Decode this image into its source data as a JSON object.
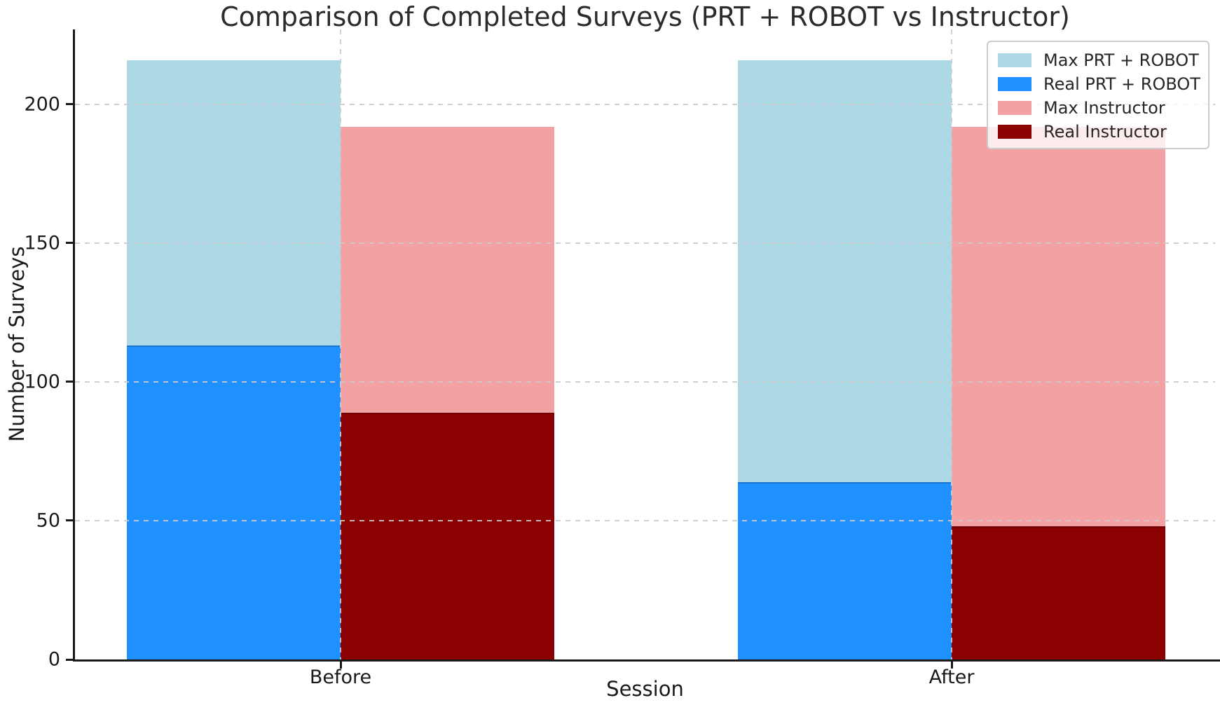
{
  "chart_data": {
    "type": "bar",
    "title": "Comparison of Completed Surveys (PRT + ROBOT vs Instructor)",
    "xlabel": "Session",
    "ylabel": "Number of Surveys",
    "categories": [
      "Before",
      "After"
    ],
    "series": [
      {
        "name": "Max PRT + ROBOT",
        "role": "max",
        "pair": "PRT + ROBOT",
        "color": "#ADD8E6",
        "values": [
          216,
          216
        ]
      },
      {
        "name": "Real PRT + ROBOT",
        "role": "real",
        "pair": "PRT + ROBOT",
        "color": "#1E90FF",
        "values": [
          113,
          64
        ]
      },
      {
        "name": "Max Instructor",
        "role": "max",
        "pair": "Instructor",
        "color": "#F3A2A4",
        "values": [
          192,
          192
        ]
      },
      {
        "name": "Real Instructor",
        "role": "real",
        "pair": "Instructor",
        "color": "#8B0000",
        "values": [
          89,
          48
        ]
      }
    ],
    "yticks": [
      0,
      50,
      100,
      150,
      200
    ],
    "ylim": [
      0,
      227
    ],
    "grid": true,
    "grid_style": "dashed",
    "legend_position": "upper right",
    "legend_labels": [
      "Max PRT + ROBOT",
      "Real PRT + ROBOT",
      "Max Instructor",
      "Real Instructor"
    ],
    "note": "Max bars drawn behind Real bars; PRT pair left of category center, Instructor pair right"
  }
}
